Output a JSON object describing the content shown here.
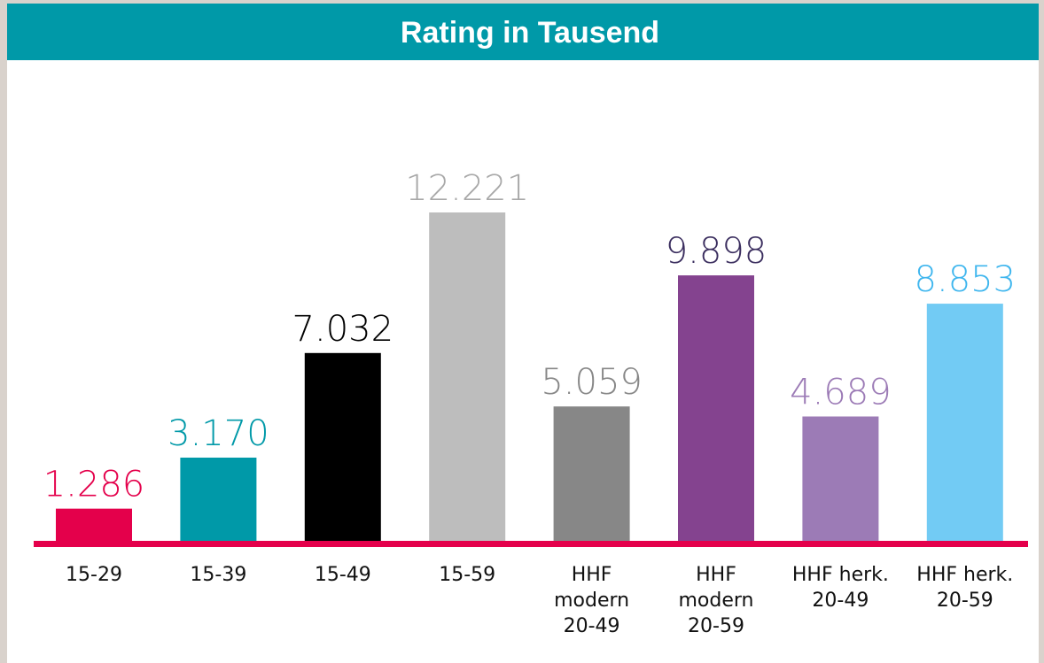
{
  "chart_data": {
    "type": "bar",
    "title": "Rating in Tausend",
    "categories": [
      [
        "15-29"
      ],
      [
        "15-39"
      ],
      [
        "15-49"
      ],
      [
        "15-59"
      ],
      [
        "HHF",
        "modern",
        "20-49"
      ],
      [
        "HHF",
        "modern",
        "20-59"
      ],
      [
        "HHF herk.",
        "20-49"
      ],
      [
        "HHF herk.",
        "20-59"
      ]
    ],
    "values": [
      1286,
      3170,
      7032,
      12221,
      5059,
      9898,
      4689,
      8853
    ],
    "value_labels": [
      "1.286",
      "3.170",
      "7.032",
      "12.221",
      "5.059",
      "9.898",
      "4.689",
      "8.853"
    ],
    "colors": [
      "#e4004b",
      "#0099a8",
      "#000000",
      "#bdbdbd",
      "#878787",
      "#84438f",
      "#9c7bb6",
      "#72cbf4"
    ],
    "label_colors": [
      "#e4004b",
      "#0099a8",
      "#000000",
      "#a8a8a8",
      "#878787",
      "#3a2d5e",
      "#9c7bb6",
      "#3fb6ee"
    ],
    "baseline_color": "#e4004b",
    "header_color": "#0099a8"
  }
}
